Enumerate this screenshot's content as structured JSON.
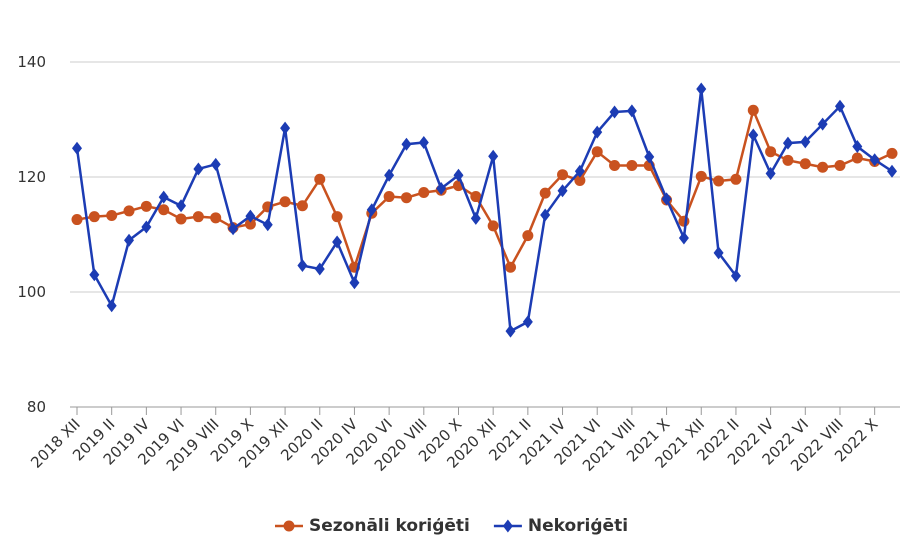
{
  "chart_data": {
    "type": "line",
    "categories": [
      "2018 XII",
      null,
      "2019 II",
      null,
      "2019 IV",
      null,
      "2019 VI",
      null,
      "2019 VIII",
      null,
      "2019 X",
      null,
      "2019 XII",
      null,
      "2020 II",
      null,
      "2020 IV",
      null,
      "2020 VI",
      null,
      "2020 VIII",
      null,
      "2020 X",
      null,
      "2020 XII",
      null,
      "2021 II",
      null,
      "2021 IV",
      null,
      "2021 VI",
      null,
      "2021 VIII",
      null,
      "2021 X",
      null,
      "2021 XII",
      null,
      "2022 II",
      null,
      "2022 IV",
      null,
      "2022 VI",
      null,
      "2022 VIII",
      null,
      "2022 X",
      null
    ],
    "series": [
      {
        "name": "Sezonāli koriģēti",
        "color": "#c9521f",
        "marker": "circle",
        "values": [
          112.6,
          113.1,
          113.3,
          114.1,
          114.9,
          114.3,
          112.7,
          113.1,
          112.9,
          111.2,
          111.8,
          114.8,
          115.7,
          115.0,
          119.6,
          113.1,
          104.3,
          113.7,
          116.6,
          116.4,
          117.3,
          117.7,
          118.5,
          116.6,
          111.5,
          104.3,
          109.8,
          117.2,
          120.4,
          119.4,
          124.4,
          122.0,
          122.0,
          122.0,
          116.0,
          112.3,
          120.1,
          119.3,
          119.6,
          131.6,
          124.4,
          122.9,
          122.3,
          121.7,
          122.0,
          123.3,
          122.7,
          124.1
        ]
      },
      {
        "name": "Nekoriģēti",
        "color": "#1c3cb4",
        "marker": "diamond",
        "values": [
          125.0,
          103.0,
          97.6,
          109.0,
          111.3,
          116.5,
          115.0,
          121.4,
          122.2,
          111.0,
          113.2,
          111.7,
          128.5,
          104.6,
          104.0,
          108.7,
          101.6,
          114.3,
          120.3,
          125.7,
          126.0,
          118.0,
          120.3,
          112.8,
          123.6,
          93.2,
          94.8,
          113.4,
          117.6,
          121.0,
          127.8,
          131.3,
          131.5,
          123.5,
          116.2,
          109.4,
          135.3,
          106.8,
          102.8,
          127.3,
          120.6,
          125.9,
          126.1,
          129.2,
          132.3,
          125.3,
          123.0,
          121.0
        ]
      }
    ],
    "ylim": [
      80,
      140
    ],
    "yticks": [
      80,
      100,
      120,
      140
    ],
    "grid": true,
    "legend": "bottom"
  }
}
